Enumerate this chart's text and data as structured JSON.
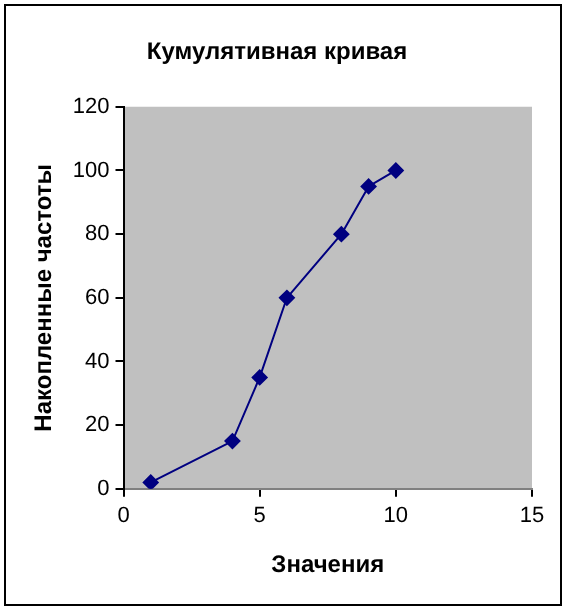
{
  "chart_data": {
    "type": "line",
    "title": "Кумулятивная кривая",
    "xlabel": "Значения",
    "ylabel": "Накопленные частоты",
    "x": [
      1,
      4,
      5,
      6,
      8,
      9,
      10
    ],
    "series": [
      {
        "color": "#000080",
        "values": [
          2,
          15,
          35,
          60,
          80,
          95,
          100
        ]
      }
    ],
    "xlim": [
      0,
      15
    ],
    "xticks": [
      0,
      5,
      10,
      15
    ],
    "ylim": [
      0,
      120
    ],
    "yticks": [
      0,
      20,
      40,
      60,
      80,
      100,
      120
    ],
    "grid": false,
    "legend": false,
    "marker": "diamond",
    "line_style": "solid"
  }
}
